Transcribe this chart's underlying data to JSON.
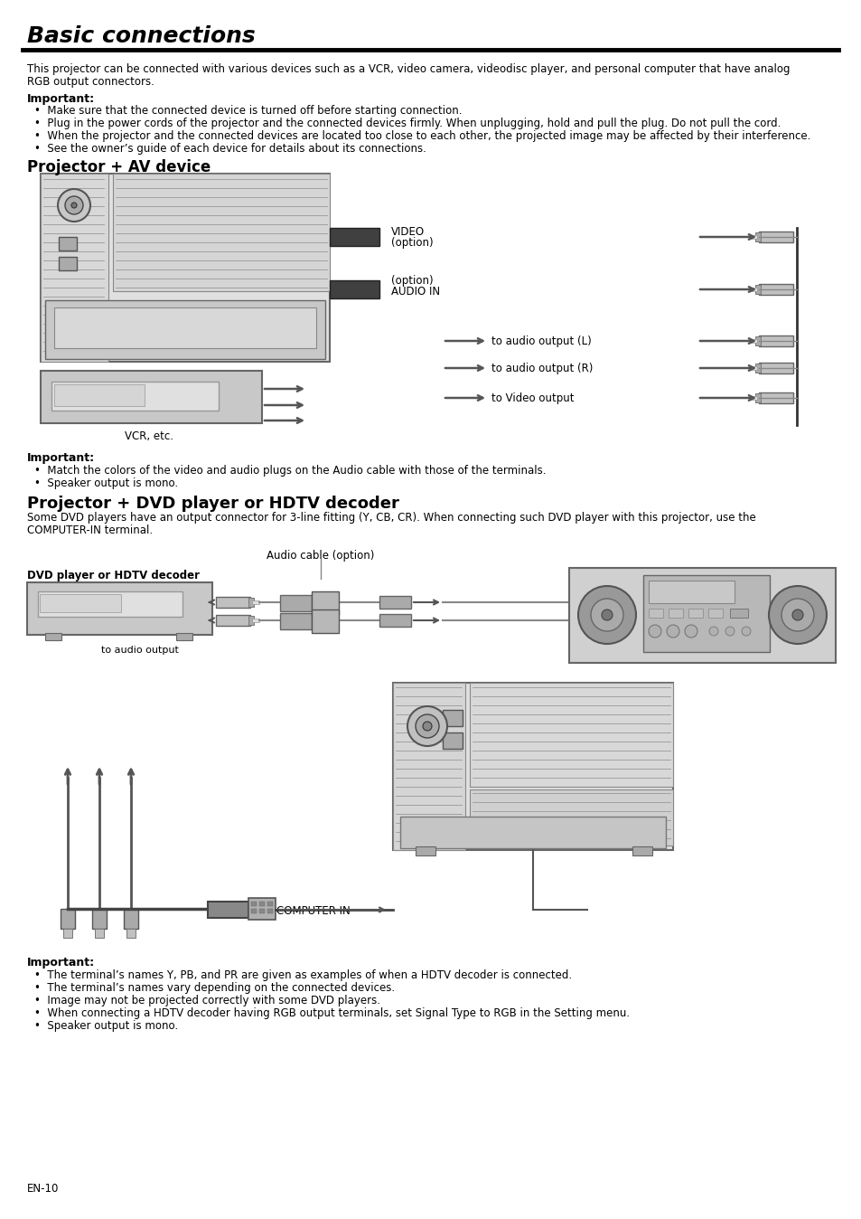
{
  "title": "Basic connections",
  "intro1": "This projector can be connected with various devices such as a VCR, video camera, videodisc player, and personal computer that have analog",
  "intro2": "RGB output connectors.",
  "imp1_hdr": "Important:",
  "imp1": [
    "Make sure that the connected device is turned off before starting connection.",
    "Plug in the power cords of the projector and the connected devices firmly. When unplugging, hold and pull the plug. Do not pull the cord.",
    "When the projector and the connected devices are located too close to each other, the projected image may be affected by their interference.",
    "See the owner’s guide of each device for details about its connections."
  ],
  "sec1": "Projector + AV device",
  "vcr_lbl": "VCR, etc.",
  "video_lbl1": "VIDEO",
  "video_lbl2": "(option)",
  "opt_lbl": "(option)",
  "ain_lbl": "AUDIO IN",
  "laud_lbl": "to audio output (L)",
  "raud_lbl": "to audio output (R)",
  "vout_lbl": "to Video output",
  "imp2_hdr": "Important:",
  "imp2": [
    "Match the colors of the video and audio plugs on the Audio cable with those of the terminals.",
    "Speaker output is mono."
  ],
  "sec2": "Projector + DVD player or HDTV decoder",
  "sec2t1": "Some DVD players have an output connector for 3-line fitting (Y, CB, CR). When connecting such DVD player with this projector, use the",
  "sec2t2": "COMPUTER-IN terminal.",
  "acable_lbl": "Audio cable (option)",
  "dvd_lbl": "DVD player or HDTV decoder",
  "tao_lbl": "to audio output",
  "cin_lbl": "COMPUTER IN",
  "imp3_hdr": "Important:",
  "imp3": [
    "The terminal’s names Y, PB, and PR are given as examples of when a HDTV decoder is connected.",
    "The terminal’s names vary depending on the connected devices.",
    "Image may not be projected correctly with some DVD players.",
    "When connecting a HDTV decoder having RGB output terminals, set Signal Type to RGB in the Setting menu.",
    "Speaker output is mono."
  ],
  "page": "EN-10"
}
